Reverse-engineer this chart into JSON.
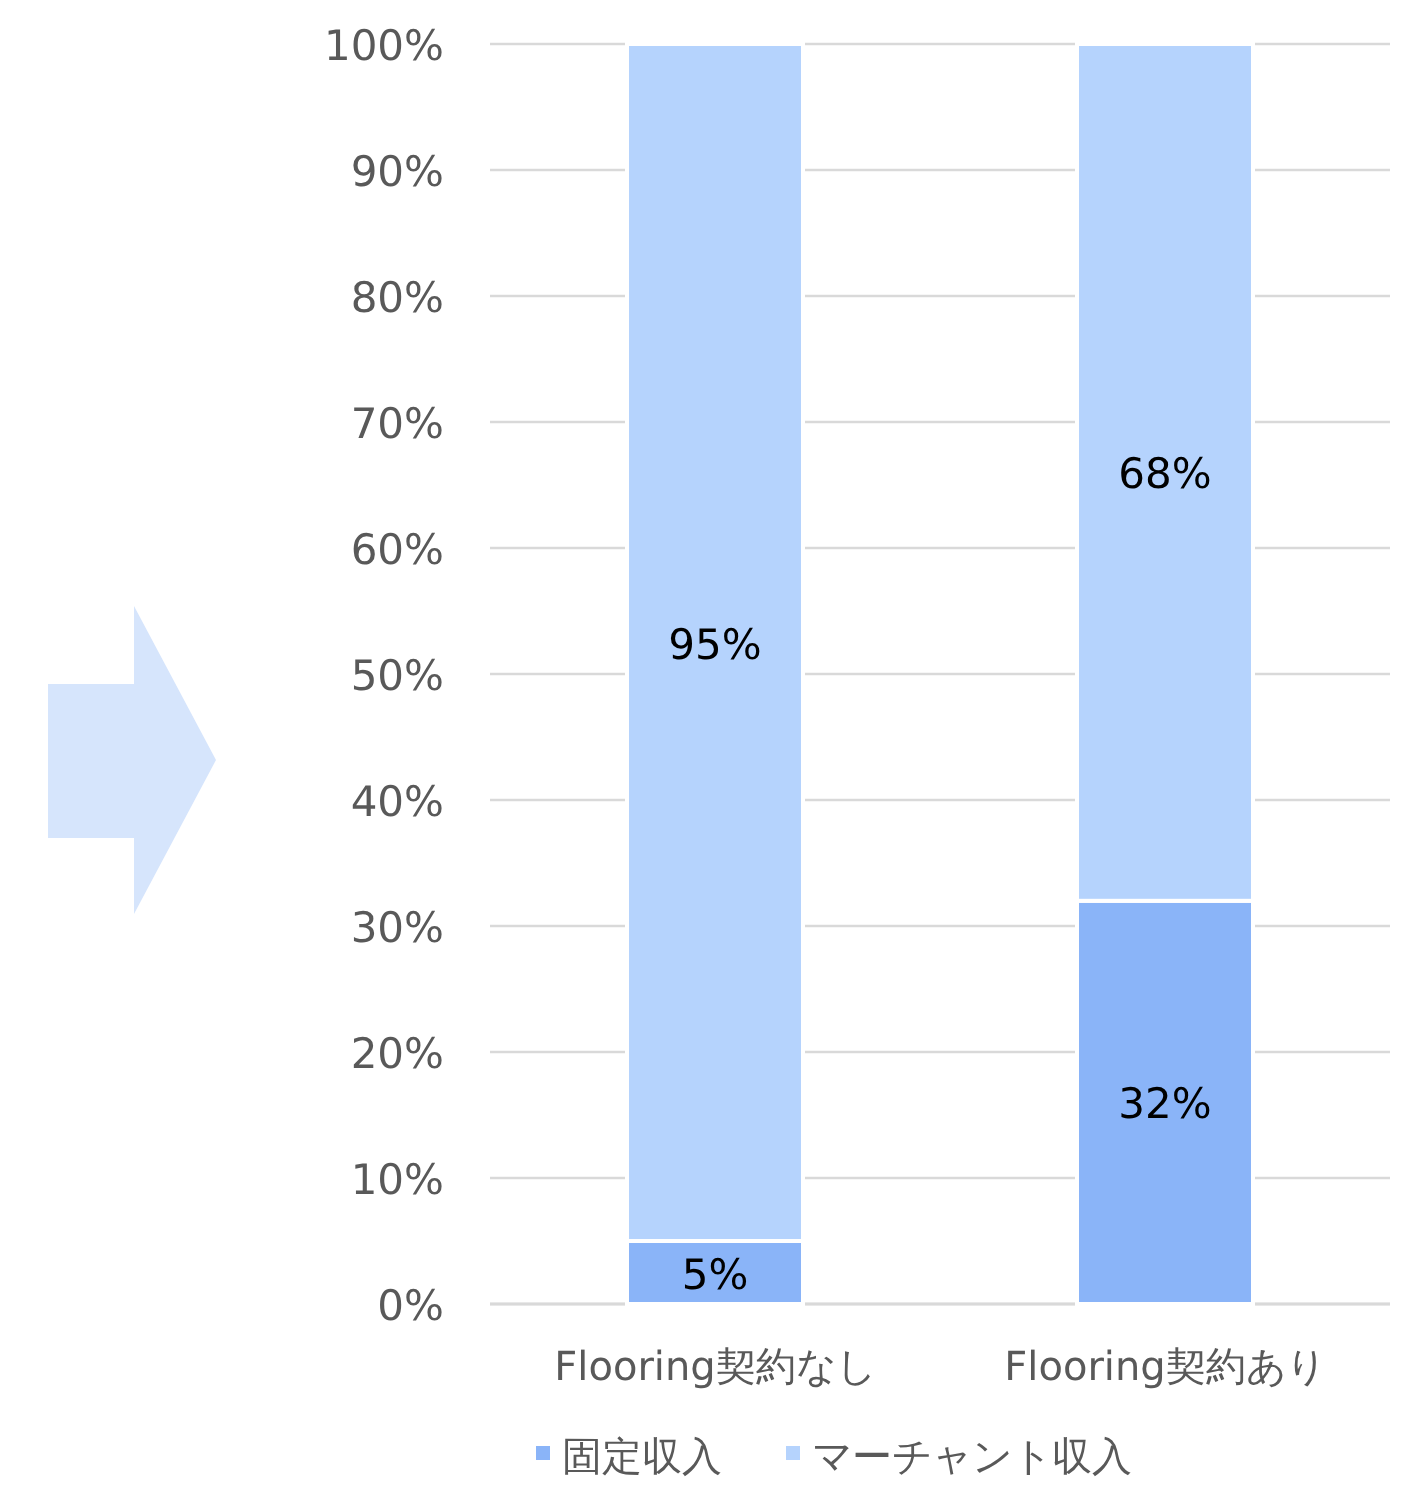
{
  "chart_data": {
    "type": "bar",
    "stacked": true,
    "categories": [
      "Flooring契約なし",
      "Flooring契約あり"
    ],
    "series": [
      {
        "name": "固定収入",
        "color": "#8ab4f8",
        "values": [
          5,
          32
        ],
        "value_labels": [
          "5%",
          "32%"
        ]
      },
      {
        "name": "マーチャント収入",
        "color": "#b5d3fd",
        "values": [
          95,
          68
        ],
        "value_labels": [
          "95%",
          "68%"
        ]
      }
    ],
    "ylim": [
      0,
      100
    ],
    "yticks": [
      {
        "value": 0,
        "label": "0%"
      },
      {
        "value": 10,
        "label": "10%"
      },
      {
        "value": 20,
        "label": "20%"
      },
      {
        "value": 30,
        "label": "30%"
      },
      {
        "value": 40,
        "label": "40%"
      },
      {
        "value": 50,
        "label": "50%"
      },
      {
        "value": 60,
        "label": "60%"
      },
      {
        "value": 70,
        "label": "70%"
      },
      {
        "value": 80,
        "label": "80%"
      },
      {
        "value": 90,
        "label": "90%"
      },
      {
        "value": 100,
        "label": "100%"
      }
    ],
    "grid": "y",
    "legend": "bottom"
  }
}
